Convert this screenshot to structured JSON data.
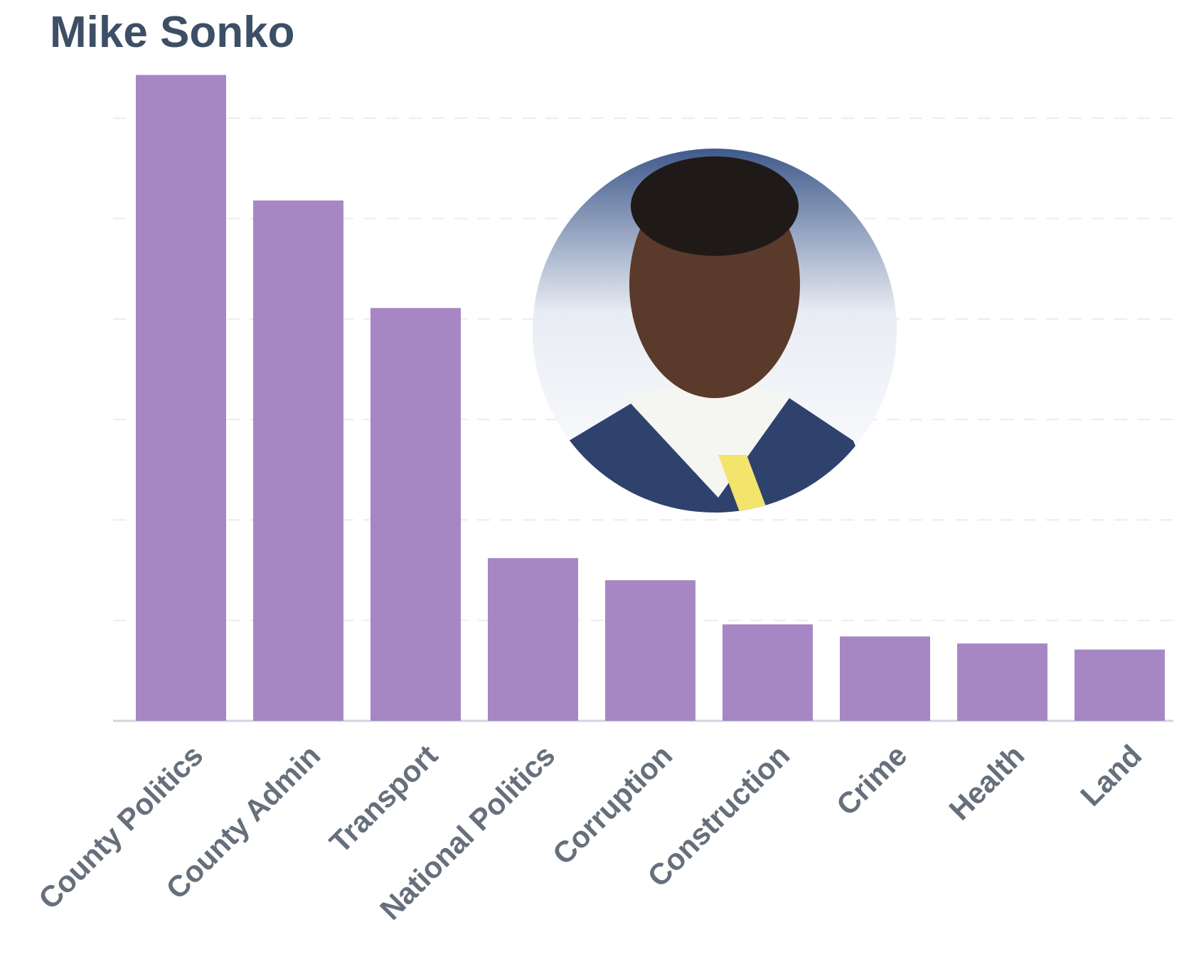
{
  "chart_data": {
    "type": "bar",
    "title": "Mike Sonko",
    "categories": [
      "County Politics",
      "County Admin",
      "Transport",
      "National Politics",
      "Corruption",
      "Construction",
      "Crime",
      "Health",
      "Land"
    ],
    "values": [
      6.43,
      5.18,
      4.11,
      1.62,
      1.4,
      0.96,
      0.84,
      0.77,
      0.71
    ],
    "color": "#a687c4",
    "ylim": [
      0,
      6.6
    ],
    "yticks": [
      0,
      1,
      2,
      3,
      4,
      5,
      6
    ],
    "grid": true
  }
}
